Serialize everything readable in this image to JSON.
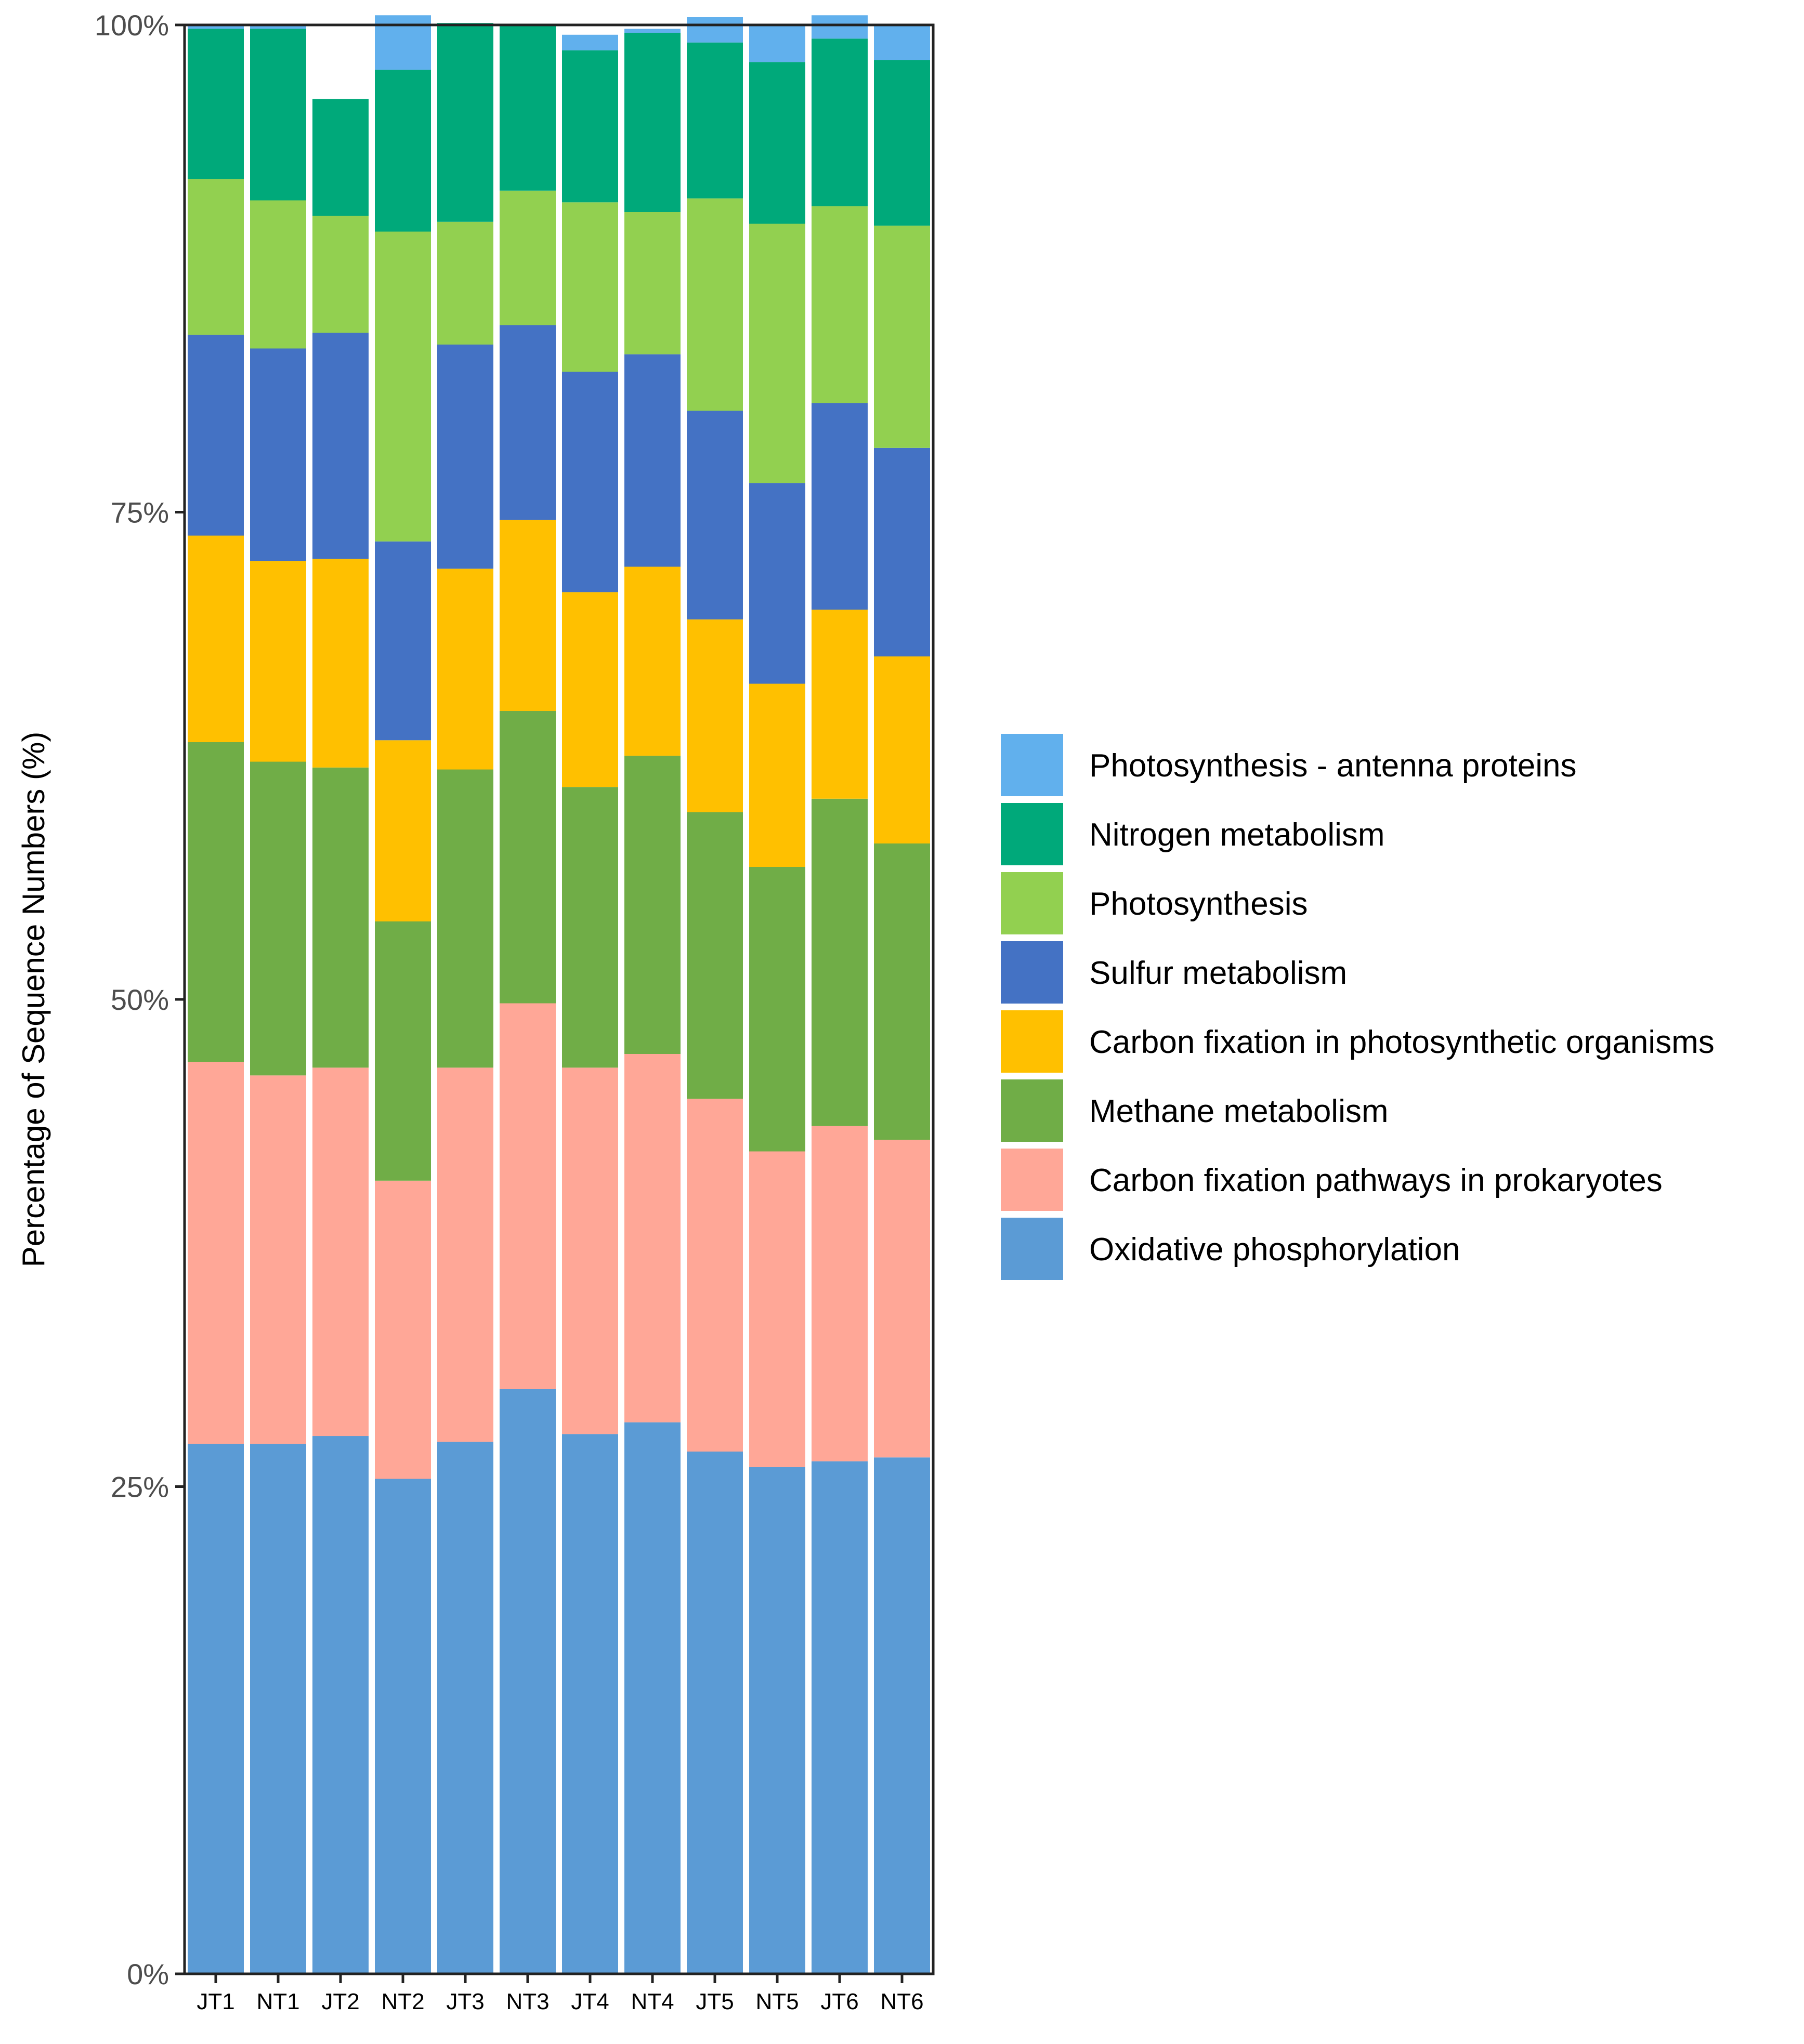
{
  "chart_data": {
    "type": "bar",
    "stacked": true,
    "title": "",
    "xlabel": "",
    "ylabel": "Percentage of Sequence Numbers (%)",
    "ylim": [
      0,
      100
    ],
    "y_ticks": [
      0,
      25,
      50,
      75,
      100
    ],
    "y_tick_labels": [
      "0%",
      "25%",
      "50%",
      "75%",
      "100%"
    ],
    "categories": [
      "JT1",
      "NT1",
      "JT2",
      "NT2",
      "JT3",
      "NT3",
      "JT4",
      "NT4",
      "JT5",
      "NT5",
      "JT6",
      "NT6"
    ],
    "legend_position": "right",
    "series": [
      {
        "name": "Oxidative phosphorylation",
        "color": "#5B9BD5",
        "values": [
          27.2,
          27.2,
          27.6,
          25.4,
          27.3,
          30.0,
          27.7,
          28.3,
          26.8,
          26.0,
          26.3,
          26.5
        ]
      },
      {
        "name": "Carbon fixation pathways in prokaryotes",
        "color": "#FFA797",
        "values": [
          19.6,
          18.9,
          18.9,
          15.3,
          19.2,
          19.8,
          18.8,
          18.9,
          18.1,
          16.2,
          17.2,
          16.3
        ]
      },
      {
        "name": "Methane metabolism",
        "color": "#70AD47",
        "values": [
          16.4,
          16.1,
          15.4,
          13.3,
          15.3,
          15.0,
          14.4,
          15.3,
          14.7,
          14.6,
          16.8,
          15.2
        ]
      },
      {
        "name": "Carbon fixation in photosynthetic organisms",
        "color": "#FFC000",
        "values": [
          10.6,
          10.3,
          10.7,
          9.3,
          10.3,
          9.8,
          10.0,
          9.7,
          9.9,
          9.4,
          9.7,
          9.6
        ]
      },
      {
        "name": "Sulfur metabolism",
        "color": "#4472C4",
        "values": [
          10.3,
          10.9,
          11.6,
          10.2,
          11.5,
          10.0,
          11.3,
          10.9,
          10.7,
          10.3,
          10.6,
          10.7
        ]
      },
      {
        "name": "Photosynthesis",
        "color": "#92D050",
        "values": [
          8.0,
          7.6,
          6.0,
          15.9,
          6.3,
          6.9,
          8.7,
          7.3,
          10.9,
          13.3,
          10.1,
          11.4
        ]
      },
      {
        "name": "Nitrogen metabolism",
        "color": "#00A97A",
        "values": [
          7.7,
          8.8,
          6.0,
          8.3,
          10.2,
          8.5,
          7.8,
          9.2,
          8.0,
          8.3,
          8.6,
          8.5
        ]
      },
      {
        "name": "Photosynthesis - antenna proteins",
        "color": "#61B0ED",
        "values": [
          0.2,
          0.2,
          0.0,
          2.8,
          0.0,
          0.0,
          0.8,
          0.2,
          1.3,
          1.9,
          1.2,
          1.8
        ]
      }
    ]
  }
}
